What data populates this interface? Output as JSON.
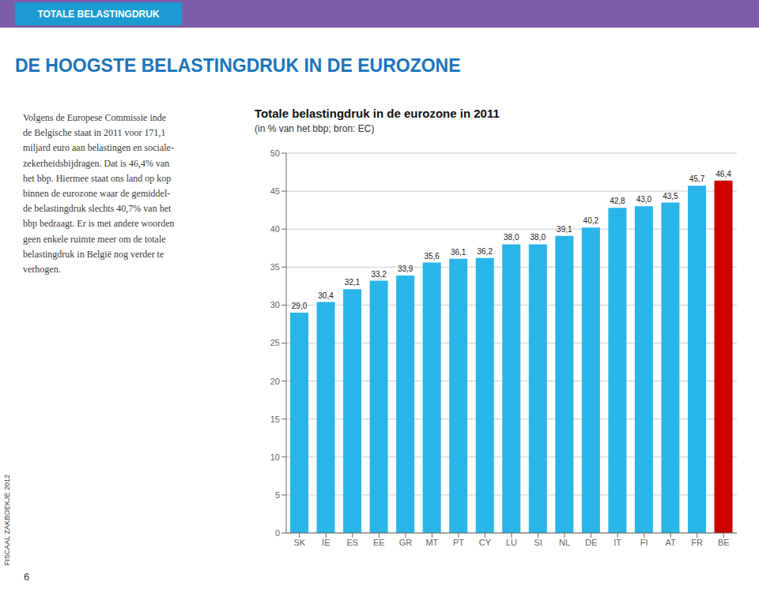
{
  "chart_data": {
    "type": "bar",
    "title": "Totale belastingdruk in de eurozone in 2011",
    "subtitle": "(in % van het bbp; bron: EC)",
    "categories": [
      "SK",
      "IE",
      "ES",
      "EE",
      "GR",
      "MT",
      "PT",
      "CY",
      "LU",
      "SI",
      "NL",
      "DE",
      "IT",
      "FI",
      "AT",
      "FR",
      "BE"
    ],
    "values": [
      29.0,
      30.4,
      32.1,
      33.2,
      33.9,
      35.6,
      36.1,
      36.2,
      38.0,
      38.0,
      39.1,
      40.2,
      42.8,
      43.0,
      43.5,
      45.7,
      46.4
    ],
    "value_labels": [
      "29,0",
      "30,4",
      "32,1",
      "33,2",
      "33,9",
      "35,6",
      "36,1",
      "36,2",
      "38,0",
      "38,0",
      "39,1",
      "40,2",
      "42,8",
      "43,0",
      "43,5",
      "45,7",
      "46,4"
    ],
    "data_labels": true,
    "colors": [
      "#29B5E8",
      "#29B5E8",
      "#29B5E8",
      "#29B5E8",
      "#29B5E8",
      "#29B5E8",
      "#29B5E8",
      "#29B5E8",
      "#29B5E8",
      "#29B5E8",
      "#29B5E8",
      "#29B5E8",
      "#29B5E8",
      "#29B5E8",
      "#29B5E8",
      "#29B5E8",
      "#CC0000"
    ],
    "ylim": [
      0,
      50
    ],
    "yticks": [
      0,
      5,
      10,
      15,
      20,
      25,
      30,
      35,
      40,
      45,
      50
    ],
    "grid": true,
    "annotations": [
      "TOTALE BELASTINGDRUK",
      "DE HOOGSTE BELASTINGDRUK IN DE EUROZONE",
      "Volgens de Europese Commissie inde\nde Belgische staat in 2011 voor 171,1\nmiljard euro aan belastingen en sociale-\nzekerheidsbijdragen. Dat is 46,4% van\nhet bbp. Hiermee staat ons land op kop\nbinnen de eurozone waar de gemiddel-\nde belastingdruk slechts 40,7% van het\nbbp bedraagt. Er is met andere woorden\ngeen enkele ruimte meer om de totale\nbelastingdruk in België nog verder te\nverhogen.",
      "FISCAAL ZAKBOEKJE 2012",
      "6"
    ]
  }
}
